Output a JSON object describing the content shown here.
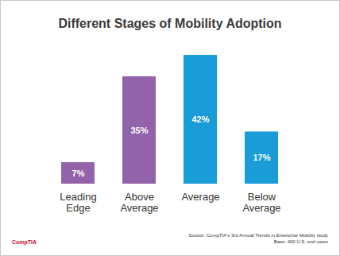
{
  "chart_data": {
    "type": "bar",
    "title": "Different Stages of Mobility Adoption",
    "categories": [
      "Leading Edge",
      "Above Average",
      "Average",
      "Below Average"
    ],
    "values": [
      7,
      35,
      42,
      17
    ],
    "value_labels": [
      "7%",
      "35%",
      "42%",
      "17%"
    ],
    "colors": [
      "#9262aa",
      "#9262aa",
      "#1a9cd8",
      "#1a9cd8"
    ],
    "ylim": [
      0,
      42
    ],
    "data_labels": true,
    "tick_labels": "x",
    "grid": false,
    "source": "Source: CompTIA's 3rd Annual Trends in Enterprise Mobility study",
    "base": "Base: 400 U.S. end users",
    "brand": "CompTIA"
  }
}
